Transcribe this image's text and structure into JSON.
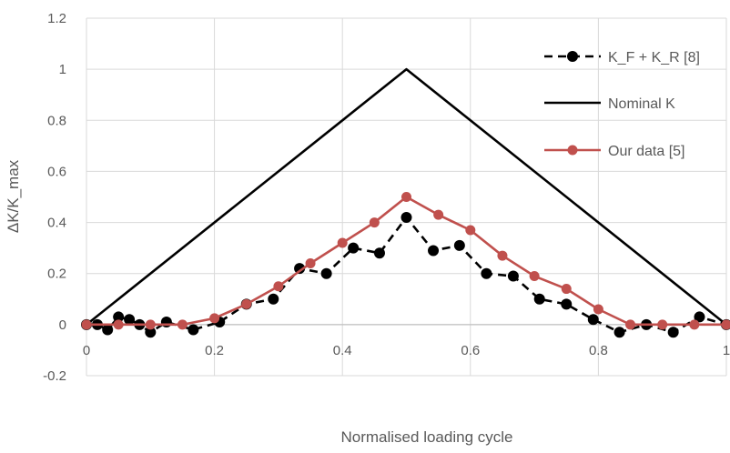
{
  "chart_data": {
    "type": "line",
    "title": "",
    "xlabel": "Normalised loading cycle",
    "ylabel": "ΔK/K_max",
    "xlim": [
      0,
      1
    ],
    "ylim": [
      -0.2,
      1.2
    ],
    "xticks": [
      0,
      0.2,
      0.4,
      0.6,
      0.8,
      1
    ],
    "xtick_labels": [
      "0",
      "0.2",
      "0.4",
      "0.6",
      "0.8",
      "1"
    ],
    "yticks": [
      -0.2,
      0,
      0.2,
      0.4,
      0.6,
      0.8,
      1,
      1.2
    ],
    "ytick_labels": [
      "-0.2",
      "0",
      "0.2",
      "0.4",
      "0.6",
      "0.8",
      "1",
      "1.2"
    ],
    "grid": true,
    "legend_position": "right",
    "series": [
      {
        "name": "K_F + K_R [8]",
        "color": "#000000",
        "style": "dashed",
        "marker": "circle",
        "x": [
          0,
          0.017,
          0.033,
          0.05,
          0.067,
          0.083,
          0.1,
          0.125,
          0.167,
          0.208,
          0.25,
          0.292,
          0.333,
          0.375,
          0.417,
          0.458,
          0.5,
          0.542,
          0.583,
          0.625,
          0.667,
          0.708,
          0.75,
          0.792,
          0.833,
          0.875,
          0.917,
          0.958,
          1
        ],
        "y": [
          0,
          0,
          -0.02,
          0.03,
          0.02,
          0,
          -0.03,
          0.01,
          -0.02,
          0.01,
          0.08,
          0.1,
          0.22,
          0.2,
          0.3,
          0.28,
          0.42,
          0.29,
          0.31,
          0.2,
          0.19,
          0.1,
          0.08,
          0.02,
          -0.03,
          0,
          -0.03,
          0.03,
          0
        ]
      },
      {
        "name": "Nominal K",
        "color": "#000000",
        "style": "solid",
        "marker": "none",
        "x": [
          0,
          0.5,
          1
        ],
        "y": [
          0,
          1,
          0
        ]
      },
      {
        "name": "Our data [5]",
        "color": "#c0504d",
        "style": "solid",
        "marker": "circle",
        "x": [
          0,
          0.05,
          0.1,
          0.15,
          0.2,
          0.25,
          0.3,
          0.35,
          0.4,
          0.45,
          0.5,
          0.55,
          0.6,
          0.65,
          0.7,
          0.75,
          0.8,
          0.85,
          0.9,
          0.95,
          1
        ],
        "y": [
          0,
          0,
          0,
          0,
          0.025,
          0.08,
          0.15,
          0.24,
          0.32,
          0.4,
          0.5,
          0.43,
          0.37,
          0.27,
          0.19,
          0.14,
          0.06,
          0,
          0,
          0,
          0
        ]
      }
    ]
  }
}
